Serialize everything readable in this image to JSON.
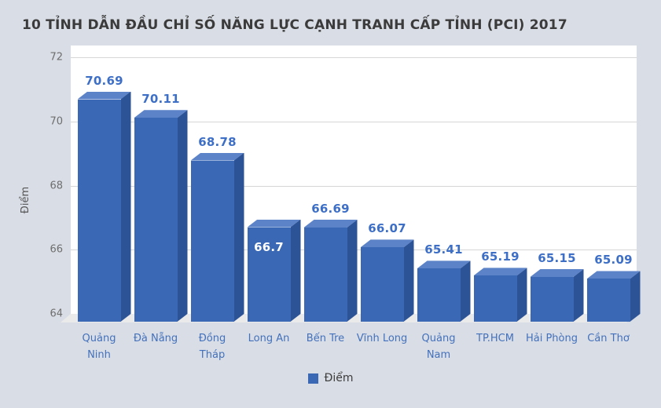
{
  "page": {
    "background": "#d9dde5"
  },
  "chart_data": {
    "type": "bar",
    "style": "3d-column",
    "title": "10 TỈNH DẪN ĐẦU CHỈ SỐ NĂNG LỰC CẠNH TRANH CẤP TỈNH (PCI) 2017",
    "ylabel": "Điểm",
    "legend_label": "Điểm",
    "legend_position": "bottom",
    "grid": true,
    "ylim": [
      64,
      72
    ],
    "yticks": [
      64,
      66,
      68,
      70,
      72
    ],
    "categories": [
      "Quảng Ninh",
      "Đà Nẵng",
      "Đồng Tháp",
      "Long An",
      "Bến Tre",
      "Vĩnh Long",
      "Quảng Nam",
      "TP.HCM",
      "Hải Phòng",
      "Cần Thơ"
    ],
    "category_wrap": [
      true,
      false,
      true,
      false,
      false,
      false,
      true,
      false,
      false,
      false
    ],
    "values": [
      70.69,
      70.11,
      68.78,
      66.7,
      66.69,
      66.07,
      65.41,
      65.19,
      65.15,
      65.09
    ],
    "value_labels": [
      "70.69",
      "70.11",
      "68.78",
      "66.7",
      "66.69",
      "66.07",
      "65.41",
      "65.19",
      "65.15",
      "65.09"
    ],
    "annotation_placement": [
      "above",
      "above",
      "above",
      "inside",
      "above",
      "above",
      "above",
      "above",
      "above",
      "above"
    ],
    "colors": {
      "background": "#d9dde5",
      "plot_background": "#ffffff",
      "gridline": "#d6d6d6",
      "floor": "#eaeaea",
      "bar_front": "#3a68b5",
      "bar_top": "#5c83c8",
      "bar_side": "#2d5397",
      "annotation": "#3d6fc7",
      "annotation_inside": "#ffffff",
      "axis_label": "#4371bc",
      "tick_label": "#6e6e6e",
      "title": "#3b3b3b"
    }
  }
}
